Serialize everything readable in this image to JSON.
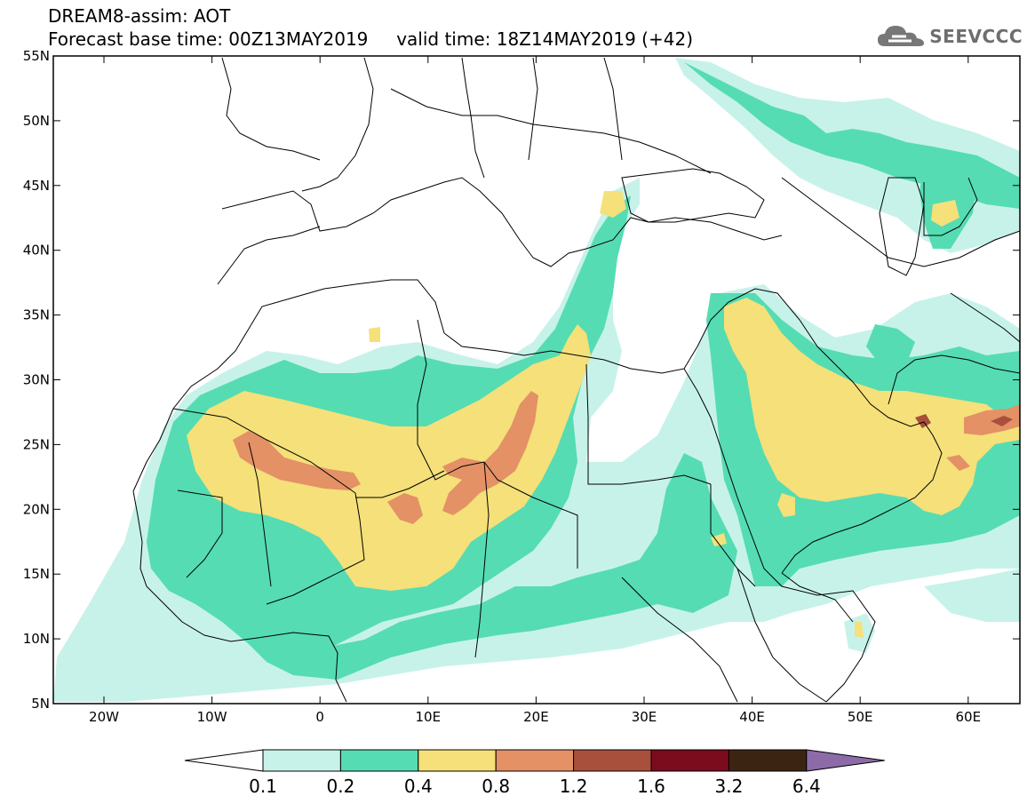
{
  "header": {
    "line1": "DREAM8-assim: AOT",
    "line2": "Forecast base time: 00Z13MAY2019     valid time: 18Z14MAY2019 (+42)",
    "brand": "SEEVCCC",
    "brand_icon": "cloud-icon"
  },
  "axes": {
    "lat_labels": [
      "55N",
      "50N",
      "45N",
      "40N",
      "35N",
      "30N",
      "25N",
      "20N",
      "15N",
      "10N",
      "5N"
    ],
    "lon_labels": [
      "20W",
      "10W",
      "0",
      "10E",
      "20E",
      "30E",
      "40E",
      "50E",
      "60E"
    ]
  },
  "colorbar": {
    "levels": [
      "0.1",
      "0.2",
      "0.4",
      "0.8",
      "1.2",
      "1.6",
      "3.2",
      "6.4"
    ],
    "colors": [
      "#ffffff",
      "#c7f2e9",
      "#55dcb3",
      "#f5e07a",
      "#e49166",
      "#a8503b",
      "#7a0c1d",
      "#3b2512",
      "#8c6ba8"
    ]
  },
  "map_colors": {
    "c1": "#c7f2e9",
    "c2": "#55dcb3",
    "c3": "#f5e07a",
    "c4": "#e49166",
    "c5": "#a8503b",
    "border": "#000000"
  }
}
